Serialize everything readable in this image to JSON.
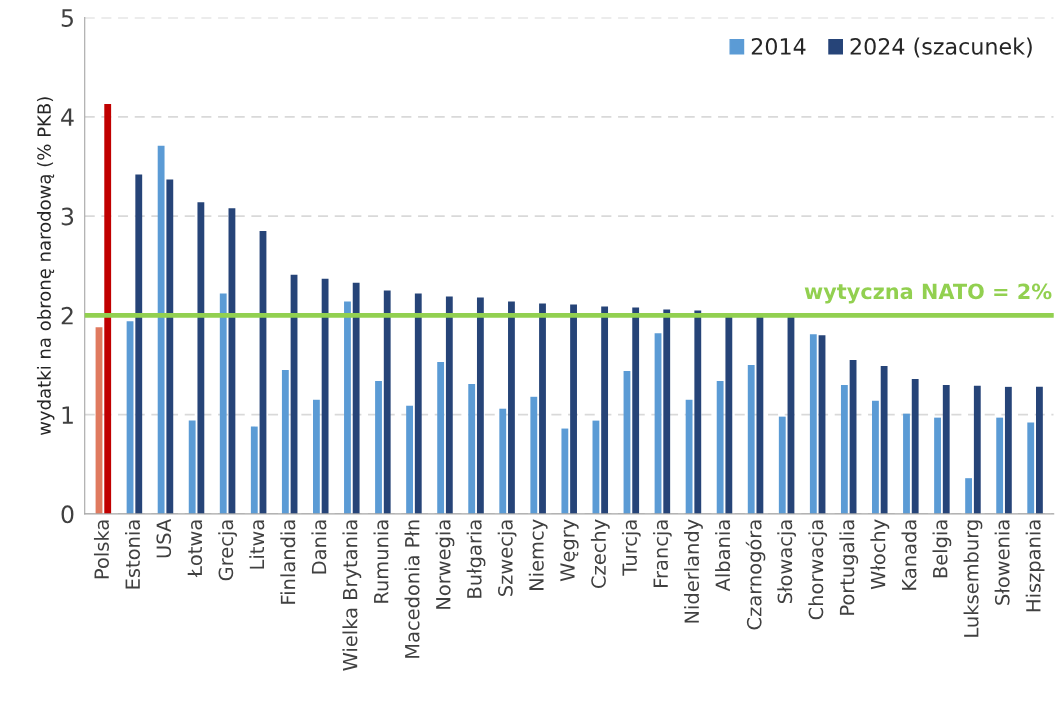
{
  "chart_data": {
    "type": "bar",
    "ylabel": "wydatki na obronę narodową (% PKB)",
    "categories": [
      "Polska",
      "Estonia",
      "USA",
      "Łotwa",
      "Grecja",
      "Litwa",
      "Finlandia",
      "Dania",
      "Wielka Brytania",
      "Rumunia",
      "Macedonia Płn",
      "Norwegia",
      "Bułgaria",
      "Szwecja",
      "Niemcy",
      "Węgry",
      "Czechy",
      "Turcja",
      "Francja",
      "Niderlandy",
      "Albania",
      "Czarnogóra",
      "Słowacja",
      "Chorwacja",
      "Portugalia",
      "Włochy",
      "Kanada",
      "Belgia",
      "Luksemburg",
      "Słowenia",
      "Hiszpania"
    ],
    "series": [
      {
        "name": "2014",
        "color": "#5b9bd5",
        "colors": [
          "#e07a5f",
          "#5b9bd5",
          "#5b9bd5",
          "#5b9bd5",
          "#5b9bd5",
          "#5b9bd5",
          "#5b9bd5",
          "#5b9bd5",
          "#5b9bd5",
          "#5b9bd5",
          "#5b9bd5",
          "#5b9bd5",
          "#5b9bd5",
          "#5b9bd5",
          "#5b9bd5",
          "#5b9bd5",
          "#5b9bd5",
          "#5b9bd5",
          "#5b9bd5",
          "#5b9bd5",
          "#5b9bd5",
          "#5b9bd5",
          "#5b9bd5",
          "#5b9bd5",
          "#5b9bd5",
          "#5b9bd5",
          "#5b9bd5",
          "#5b9bd5",
          "#5b9bd5",
          "#5b9bd5",
          "#5b9bd5"
        ],
        "values": [
          1.88,
          1.94,
          3.71,
          0.94,
          2.22,
          0.88,
          1.45,
          1.15,
          2.14,
          1.34,
          1.09,
          1.53,
          1.31,
          1.06,
          1.18,
          0.86,
          0.94,
          1.44,
          1.82,
          1.15,
          1.34,
          1.5,
          0.98,
          1.81,
          1.3,
          1.14,
          1.01,
          0.97,
          0.36,
          0.97,
          0.92
        ]
      },
      {
        "name": "2024 (szacunek)",
        "color": "#264478",
        "colors": [
          "#c00000",
          "#264478",
          "#264478",
          "#264478",
          "#264478",
          "#264478",
          "#264478",
          "#264478",
          "#264478",
          "#264478",
          "#264478",
          "#264478",
          "#264478",
          "#264478",
          "#264478",
          "#264478",
          "#264478",
          "#264478",
          "#264478",
          "#264478",
          "#264478",
          "#264478",
          "#264478",
          "#264478",
          "#264478",
          "#264478",
          "#264478",
          "#264478",
          "#264478",
          "#264478",
          "#264478"
        ],
        "values": [
          4.13,
          3.42,
          3.37,
          3.14,
          3.08,
          2.85,
          2.41,
          2.37,
          2.33,
          2.25,
          2.22,
          2.19,
          2.18,
          2.14,
          2.12,
          2.11,
          2.09,
          2.08,
          2.06,
          2.05,
          2.0,
          2.0,
          2.0,
          1.8,
          1.55,
          1.49,
          1.36,
          1.3,
          1.29,
          1.28,
          1.28
        ]
      }
    ],
    "ylim": [
      0,
      5
    ],
    "yticks": [
      0,
      1,
      2,
      3,
      4,
      5
    ],
    "grid": "y",
    "legend": "top right",
    "ref_lines": [
      {
        "axis": "y",
        "value": 2,
        "label": "wytyczna NATO = 2%",
        "color": "#92d050"
      }
    ]
  }
}
